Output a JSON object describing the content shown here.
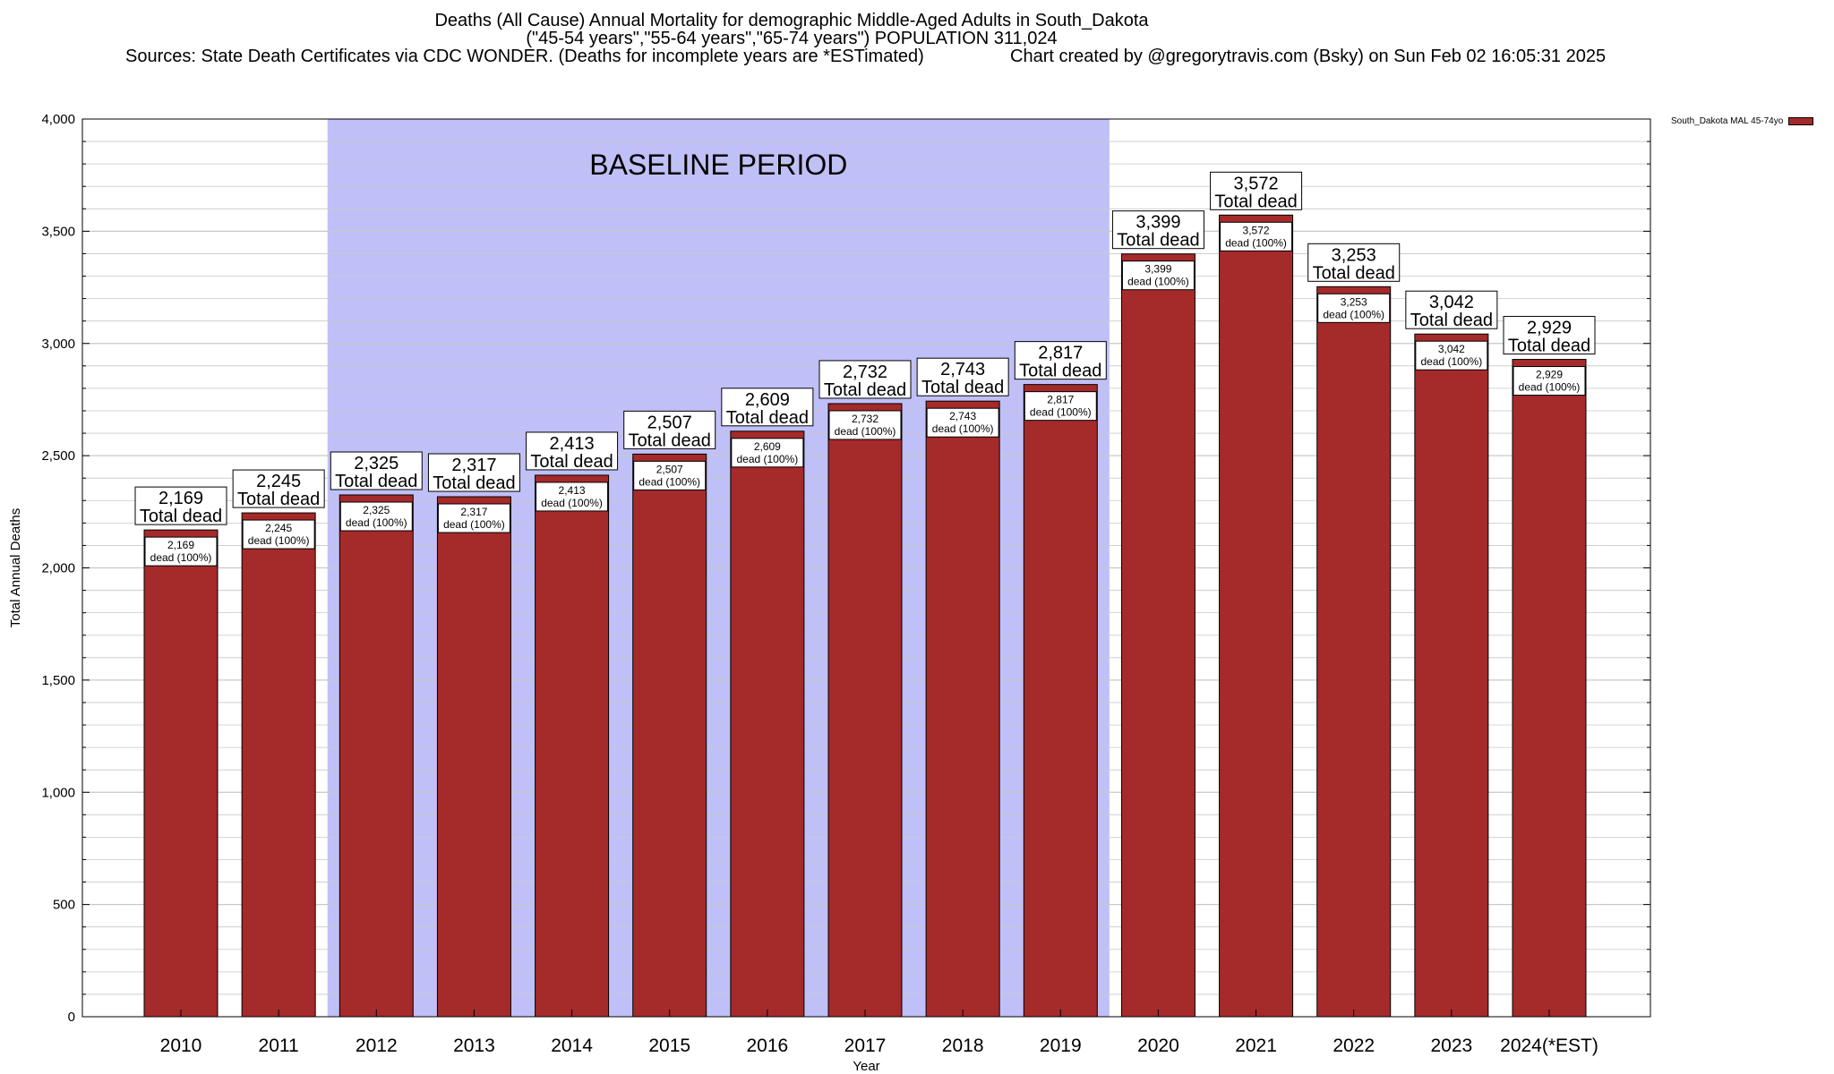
{
  "header": {
    "title_line1": "Deaths (All Cause) Annual Mortality for demographic Middle-Aged Adults in South_Dakota",
    "title_line2": "(\"45-54 years\",\"55-64 years\",\"65-74 years\") POPULATION 311,024",
    "sources": "Sources: State Death Certificates via CDC WONDER. (Deaths for incomplete years are *ESTimated)",
    "credit": "Chart created by @gregorytravis.com (Bsky) on Sun Feb 02 16:05:31 2025"
  },
  "legend": {
    "label": "South_Dakota MAL 45-74yo",
    "placement": "top-right"
  },
  "colors": {
    "bar": "#a52a2a",
    "baseline_band": "#c0c0f8",
    "grid": "#c8c8c8"
  },
  "chart_data": {
    "type": "bar",
    "xlabel": "Year",
    "ylabel": "Total Annual Deaths",
    "ylim": [
      0,
      4000
    ],
    "yticks": [
      0,
      500,
      1000,
      1500,
      2000,
      2500,
      3000,
      3500,
      4000
    ],
    "ytick_labels": [
      "0",
      "500",
      "1,000",
      "1,500",
      "2,000",
      "2,500",
      "3,000",
      "3,500",
      "4,000"
    ],
    "grid": true,
    "categories": [
      "2010",
      "2011",
      "2012",
      "2013",
      "2014",
      "2015",
      "2016",
      "2017",
      "2018",
      "2019",
      "2020",
      "2021",
      "2022",
      "2023",
      "2024(*EST)"
    ],
    "series": [
      {
        "name": "South_Dakota MAL 45-74yo",
        "values": [
          2169,
          2245,
          2325,
          2317,
          2413,
          2507,
          2609,
          2732,
          2743,
          2817,
          3399,
          3572,
          3253,
          3042,
          2929
        ]
      }
    ],
    "top_labels": [
      "2,169",
      "2,245",
      "2,325",
      "2,317",
      "2,413",
      "2,507",
      "2,609",
      "2,732",
      "2,743",
      "2,817",
      "3,399",
      "3,572",
      "3,253",
      "3,042",
      "2,929"
    ],
    "top_label_suffix": "Total dead",
    "inner_labels": [
      "2,169",
      "2,245",
      "2,325",
      "2,317",
      "2,413",
      "2,507",
      "2,609",
      "2,732",
      "2,743",
      "2,817",
      "3,399",
      "3,572",
      "3,253",
      "3,042",
      "2,929"
    ],
    "inner_label_suffix": "dead (100%)",
    "baseline": {
      "label": "BASELINE PERIOD",
      "from": "2012",
      "to": "2019"
    }
  }
}
